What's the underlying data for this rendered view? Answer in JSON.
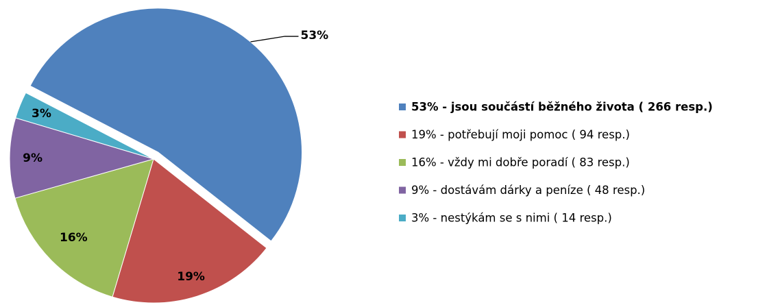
{
  "chart_data": {
    "type": "pie",
    "categories": [
      "53% - jsou součástí běžného života ( 266 resp.)",
      "19% - potřebují moji pomoc ( 94 resp.)",
      "16% - vždy mi dobře poradí ( 83 resp.)",
      "9% - dostávám dárky a peníze ( 48 resp.)",
      "3% - nestýkám se s nimi ( 14 resp.)"
    ],
    "values": [
      53,
      19,
      16,
      9,
      3
    ],
    "value_labels": [
      "53%",
      "19%",
      "16%",
      "9%",
      "3%"
    ],
    "colors": [
      "#4f81bd",
      "#c0504d",
      "#9bbb59",
      "#8064a2",
      "#4bacc6"
    ],
    "legend": "right"
  }
}
